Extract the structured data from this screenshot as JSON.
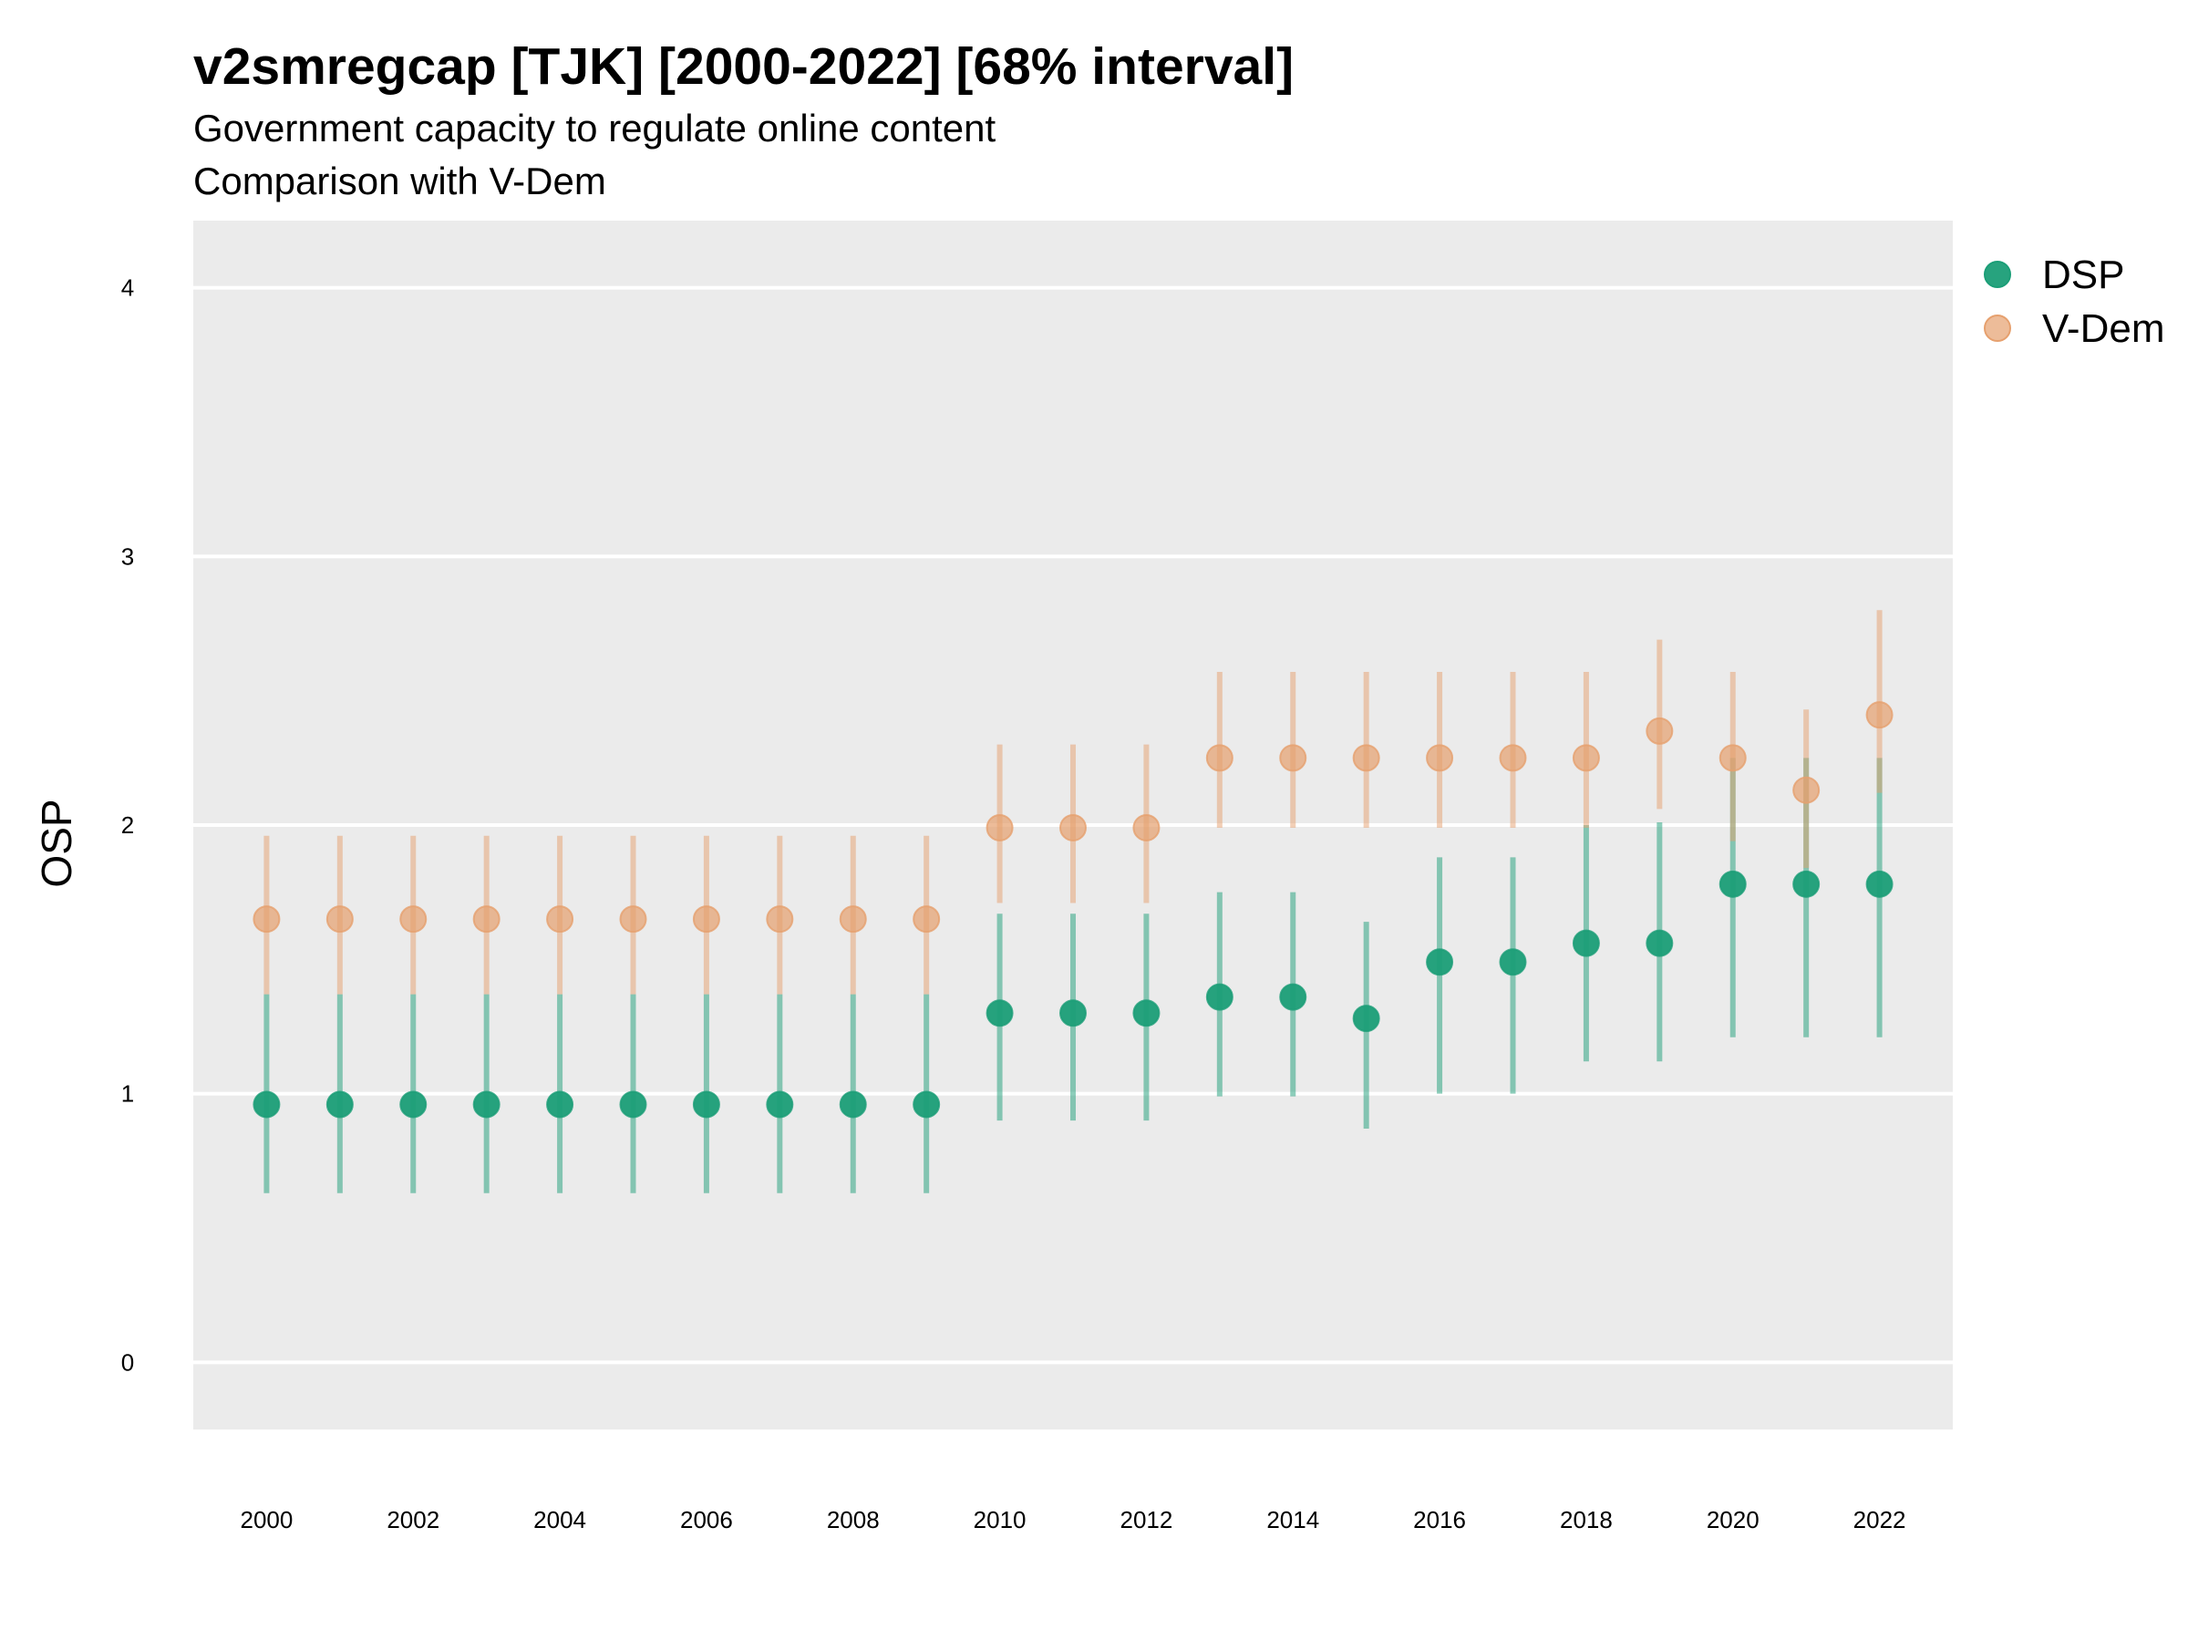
{
  "chart_data": {
    "type": "scatter",
    "title": "v2smregcap [TJK] [2000-2022] [68% interval]",
    "subtitle_lines": [
      "Government capacity to regulate online content",
      "Comparison with V-Dem"
    ],
    "xlabel": "",
    "ylabel": "OSP",
    "xlim": [
      1999,
      2023
    ],
    "ylim": [
      -0.25,
      4.25
    ],
    "x_ticks": [
      2000,
      2002,
      2004,
      2006,
      2008,
      2010,
      2012,
      2014,
      2016,
      2018,
      2020,
      2022
    ],
    "x_tick_labels": [
      "2000",
      "2002",
      "2004",
      "2006",
      "2008",
      "2010",
      "2012",
      "2014",
      "2016",
      "2018",
      "2020",
      "2022"
    ],
    "y_ticks": [
      0,
      1,
      2,
      3,
      4
    ],
    "y_tick_labels": [
      "0",
      "1",
      "2",
      "3",
      "4"
    ],
    "grid": true,
    "legend_position": "right",
    "colors": {
      "panel_background": "#EBEBEB",
      "grid_line": "#FFFFFF",
      "dsp": "#1B9E77",
      "vdem": "#E6A06E"
    },
    "series": [
      {
        "name": "DSP",
        "color": "#1B9E77",
        "points": [
          {
            "x": 2000,
            "y": 0.96,
            "low": 0.63,
            "high": 1.37
          },
          {
            "x": 2001,
            "y": 0.96,
            "low": 0.63,
            "high": 1.37
          },
          {
            "x": 2002,
            "y": 0.96,
            "low": 0.63,
            "high": 1.37
          },
          {
            "x": 2003,
            "y": 0.96,
            "low": 0.63,
            "high": 1.37
          },
          {
            "x": 2004,
            "y": 0.96,
            "low": 0.63,
            "high": 1.37
          },
          {
            "x": 2005,
            "y": 0.96,
            "low": 0.63,
            "high": 1.37
          },
          {
            "x": 2006,
            "y": 0.96,
            "low": 0.63,
            "high": 1.37
          },
          {
            "x": 2007,
            "y": 0.96,
            "low": 0.63,
            "high": 1.37
          },
          {
            "x": 2008,
            "y": 0.96,
            "low": 0.63,
            "high": 1.37
          },
          {
            "x": 2009,
            "y": 0.96,
            "low": 0.63,
            "high": 1.37
          },
          {
            "x": 2010,
            "y": 1.3,
            "low": 0.9,
            "high": 1.67
          },
          {
            "x": 2011,
            "y": 1.3,
            "low": 0.9,
            "high": 1.67
          },
          {
            "x": 2012,
            "y": 1.3,
            "low": 0.9,
            "high": 1.67
          },
          {
            "x": 2013,
            "y": 1.36,
            "low": 0.99,
            "high": 1.75
          },
          {
            "x": 2014,
            "y": 1.36,
            "low": 0.99,
            "high": 1.75
          },
          {
            "x": 2015,
            "y": 1.28,
            "low": 0.87,
            "high": 1.64
          },
          {
            "x": 2016,
            "y": 1.49,
            "low": 1.0,
            "high": 1.88
          },
          {
            "x": 2017,
            "y": 1.49,
            "low": 1.0,
            "high": 1.88
          },
          {
            "x": 2018,
            "y": 1.56,
            "low": 1.12,
            "high": 2.0
          },
          {
            "x": 2019,
            "y": 1.56,
            "low": 1.12,
            "high": 2.01
          },
          {
            "x": 2020,
            "y": 1.78,
            "low": 1.21,
            "high": 2.25
          },
          {
            "x": 2021,
            "y": 1.78,
            "low": 1.21,
            "high": 2.25
          },
          {
            "x": 2022,
            "y": 1.78,
            "low": 1.21,
            "high": 2.25
          }
        ]
      },
      {
        "name": "V-Dem",
        "color": "#E6A06E",
        "points": [
          {
            "x": 2000,
            "y": 1.65,
            "low": 1.37,
            "high": 1.96
          },
          {
            "x": 2001,
            "y": 1.65,
            "low": 1.37,
            "high": 1.96
          },
          {
            "x": 2002,
            "y": 1.65,
            "low": 1.37,
            "high": 1.96
          },
          {
            "x": 2003,
            "y": 1.65,
            "low": 1.37,
            "high": 1.96
          },
          {
            "x": 2004,
            "y": 1.65,
            "low": 1.37,
            "high": 1.96
          },
          {
            "x": 2005,
            "y": 1.65,
            "low": 1.37,
            "high": 1.96
          },
          {
            "x": 2006,
            "y": 1.65,
            "low": 1.37,
            "high": 1.96
          },
          {
            "x": 2007,
            "y": 1.65,
            "low": 1.37,
            "high": 1.96
          },
          {
            "x": 2008,
            "y": 1.65,
            "low": 1.37,
            "high": 1.96
          },
          {
            "x": 2009,
            "y": 1.65,
            "low": 1.37,
            "high": 1.96
          },
          {
            "x": 2010,
            "y": 1.99,
            "low": 1.71,
            "high": 2.3
          },
          {
            "x": 2011,
            "y": 1.99,
            "low": 1.71,
            "high": 2.3
          },
          {
            "x": 2012,
            "y": 1.99,
            "low": 1.71,
            "high": 2.3
          },
          {
            "x": 2013,
            "y": 2.25,
            "low": 1.99,
            "high": 2.57
          },
          {
            "x": 2014,
            "y": 2.25,
            "low": 1.99,
            "high": 2.57
          },
          {
            "x": 2015,
            "y": 2.25,
            "low": 1.99,
            "high": 2.57
          },
          {
            "x": 2016,
            "y": 2.25,
            "low": 1.99,
            "high": 2.57
          },
          {
            "x": 2017,
            "y": 2.25,
            "low": 1.99,
            "high": 2.57
          },
          {
            "x": 2018,
            "y": 2.25,
            "low": 1.99,
            "high": 2.57
          },
          {
            "x": 2019,
            "y": 2.35,
            "low": 2.06,
            "high": 2.69
          },
          {
            "x": 2020,
            "y": 2.25,
            "low": 1.94,
            "high": 2.57
          },
          {
            "x": 2021,
            "y": 2.13,
            "low": 1.84,
            "high": 2.43
          },
          {
            "x": 2022,
            "y": 2.41,
            "low": 2.12,
            "high": 2.8
          }
        ]
      }
    ]
  }
}
